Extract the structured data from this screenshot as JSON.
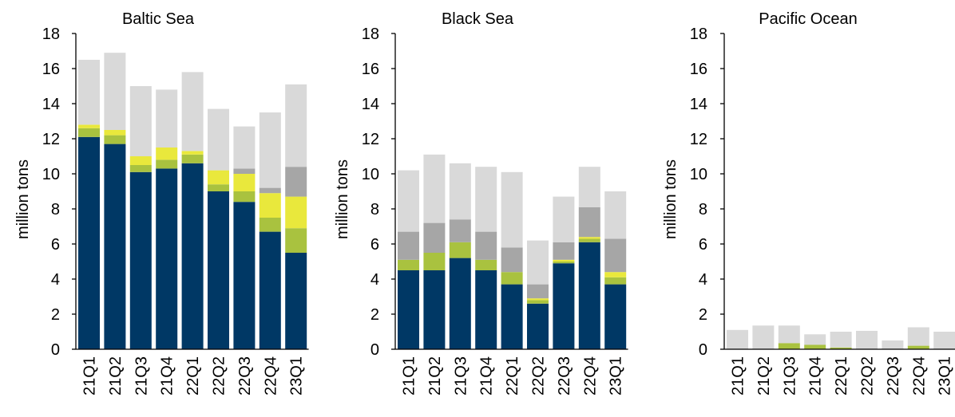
{
  "colors": {
    "segment_1": "#003865",
    "segment_2": "#a9c23f",
    "segment_3": "#e9e83c",
    "segment_4": "#a6a6a6",
    "segment_5": "#d9d9d9",
    "axis": "#000000"
  },
  "chart_data": [
    {
      "type": "bar",
      "stacked": true,
      "title": "Baltic Sea",
      "ylabel": "million tons",
      "ylim": [
        0,
        18
      ],
      "yticks": [
        0,
        2,
        4,
        6,
        8,
        10,
        12,
        14,
        16,
        18
      ],
      "categories": [
        "21Q1",
        "21Q2",
        "21Q3",
        "21Q4",
        "22Q1",
        "22Q2",
        "22Q3",
        "22Q4",
        "23Q1"
      ],
      "series": [
        {
          "color": "#003865",
          "values": [
            12.1,
            11.7,
            10.1,
            10.3,
            10.6,
            9.0,
            8.4,
            6.7,
            5.5
          ]
        },
        {
          "color": "#a9c23f",
          "values": [
            0.5,
            0.5,
            0.4,
            0.5,
            0.5,
            0.4,
            0.6,
            0.8,
            1.4
          ]
        },
        {
          "color": "#e9e83c",
          "values": [
            0.2,
            0.3,
            0.5,
            0.7,
            0.2,
            0.8,
            1.0,
            1.4,
            1.8
          ]
        },
        {
          "color": "#a6a6a6",
          "values": [
            0,
            0,
            0,
            0,
            0,
            0,
            0.3,
            0.3,
            1.7
          ]
        },
        {
          "color": "#d9d9d9",
          "values": [
            3.7,
            4.4,
            4.0,
            3.3,
            4.5,
            3.5,
            2.4,
            4.3,
            4.7
          ]
        }
      ]
    },
    {
      "type": "bar",
      "stacked": true,
      "title": "Black Sea",
      "ylabel": "million tons",
      "ylim": [
        0,
        18
      ],
      "yticks": [
        0,
        2,
        4,
        6,
        8,
        10,
        12,
        14,
        16,
        18
      ],
      "categories": [
        "21Q1",
        "21Q2",
        "21Q3",
        "21Q4",
        "22Q1",
        "22Q2",
        "22Q3",
        "22Q4",
        "23Q1"
      ],
      "series": [
        {
          "color": "#003865",
          "values": [
            4.5,
            4.5,
            5.2,
            4.5,
            3.7,
            2.6,
            4.9,
            6.1,
            3.7
          ]
        },
        {
          "color": "#a9c23f",
          "values": [
            0.6,
            1.0,
            0.9,
            0.6,
            0.7,
            0.2,
            0.1,
            0.2,
            0.4
          ]
        },
        {
          "color": "#e9e83c",
          "values": [
            0,
            0,
            0,
            0,
            0,
            0.1,
            0.1,
            0.1,
            0.3
          ]
        },
        {
          "color": "#a6a6a6",
          "values": [
            1.6,
            1.7,
            1.3,
            1.6,
            1.4,
            0.8,
            1.0,
            1.7,
            1.9
          ]
        },
        {
          "color": "#d9d9d9",
          "values": [
            3.5,
            3.9,
            3.2,
            3.7,
            4.3,
            2.5,
            2.6,
            2.3,
            2.7
          ]
        }
      ]
    },
    {
      "type": "bar",
      "stacked": true,
      "title": "Pacific Ocean",
      "ylabel": "million tons",
      "ylim": [
        0,
        18
      ],
      "yticks": [
        0,
        2,
        4,
        6,
        8,
        10,
        12,
        14,
        16,
        18
      ],
      "categories": [
        "21Q1",
        "21Q2",
        "21Q3",
        "21Q4",
        "22Q1",
        "22Q2",
        "22Q3",
        "22Q4",
        "23Q1"
      ],
      "series": [
        {
          "color": "#003865",
          "values": [
            0,
            0,
            0,
            0,
            0,
            0,
            0,
            0,
            0
          ]
        },
        {
          "color": "#a9c23f",
          "values": [
            0,
            0,
            0.35,
            0.25,
            0.1,
            0,
            0,
            0.2,
            0
          ]
        },
        {
          "color": "#e9e83c",
          "values": [
            0,
            0,
            0,
            0,
            0,
            0,
            0,
            0,
            0
          ]
        },
        {
          "color": "#a6a6a6",
          "values": [
            0,
            0,
            0,
            0,
            0,
            0,
            0,
            0,
            0
          ]
        },
        {
          "color": "#d9d9d9",
          "values": [
            1.1,
            1.35,
            1.0,
            0.6,
            0.9,
            1.05,
            0.5,
            1.05,
            1.0
          ]
        }
      ]
    }
  ]
}
